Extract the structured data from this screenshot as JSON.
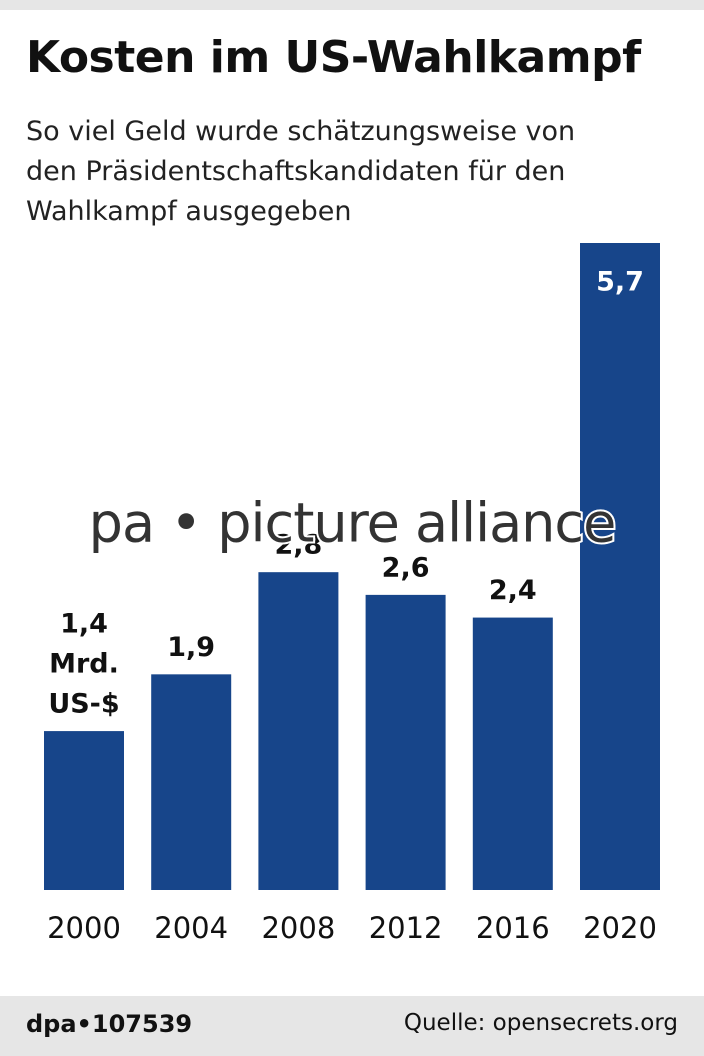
{
  "chart_data": {
    "type": "bar",
    "title": "Kosten im US-Wahlkampf",
    "subtitle": "So viel Geld wurde schätzungsweise von den Präsidentschaftskandidaten für den Wahlkampf ausgegeben",
    "categories": [
      "2000",
      "2004",
      "2008",
      "2012",
      "2016",
      "2020"
    ],
    "values": [
      1.4,
      1.9,
      2.8,
      2.6,
      2.4,
      5.7
    ],
    "value_labels": [
      "1,4",
      "1,9",
      "2,8",
      "2,6",
      "2,4",
      "5,7"
    ],
    "unit_lines": [
      "Mrd.",
      "US-$"
    ],
    "color": "#17458a",
    "watermark": "pa • picture alliance",
    "credit": "dpa•107539",
    "source": "Quelle: opensecrets.org"
  }
}
